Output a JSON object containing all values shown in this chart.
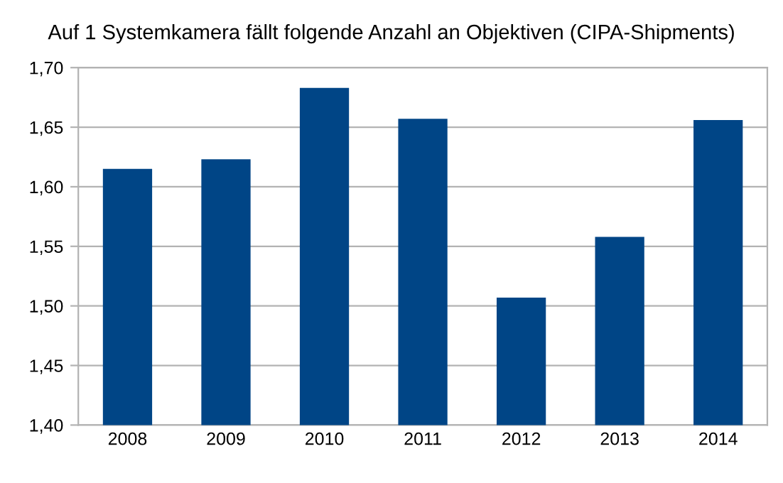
{
  "chart_data": {
    "type": "bar",
    "title": "Auf 1 Systemkamera fällt folgende Anzahl an Objektiven (CIPA-Shipments)",
    "categories": [
      "2008",
      "2009",
      "2010",
      "2011",
      "2012",
      "2013",
      "2014"
    ],
    "values": [
      1.615,
      1.623,
      1.683,
      1.657,
      1.507,
      1.558,
      1.656
    ],
    "color": "#004586",
    "ylim": [
      1.4,
      1.7
    ],
    "yticks": [
      {
        "value": 1.4,
        "label": "1,40"
      },
      {
        "value": 1.45,
        "label": "1,45"
      },
      {
        "value": 1.5,
        "label": "1,50"
      },
      {
        "value": 1.55,
        "label": "1,55"
      },
      {
        "value": 1.6,
        "label": "1,60"
      },
      {
        "value": 1.65,
        "label": "1,65"
      },
      {
        "value": 1.7,
        "label": "1,70"
      }
    ],
    "grid": "y",
    "legend": false
  }
}
